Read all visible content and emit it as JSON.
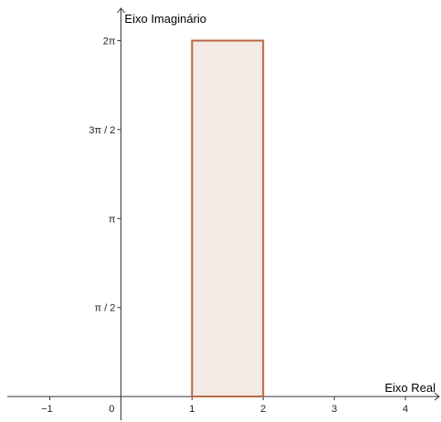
{
  "chart_data": {
    "type": "area",
    "xlabel": "Eixo Real",
    "ylabel": "Eixo Imaginário",
    "xlim": [
      -1.7,
      4.5
    ],
    "ylim": [
      -0.45,
      7.0
    ],
    "grid": false,
    "x_ticks": [
      {
        "value": -1,
        "label": "−1"
      },
      {
        "value": 0,
        "label": "0"
      },
      {
        "value": 1,
        "label": "1"
      },
      {
        "value": 2,
        "label": "2"
      },
      {
        "value": 3,
        "label": "3"
      },
      {
        "value": 4,
        "label": "4"
      }
    ],
    "y_ticks": [
      {
        "value": 1.5708,
        "label": "π / 2"
      },
      {
        "value": 3.1416,
        "label": "π"
      },
      {
        "value": 4.7124,
        "label": "3π / 2"
      },
      {
        "value": 6.2832,
        "label": "2π"
      }
    ],
    "region": {
      "x": [
        1,
        2
      ],
      "y": [
        0,
        6.2832
      ],
      "stroke_color": "#b5663f",
      "fill_color": "#f5ebe6"
    }
  }
}
